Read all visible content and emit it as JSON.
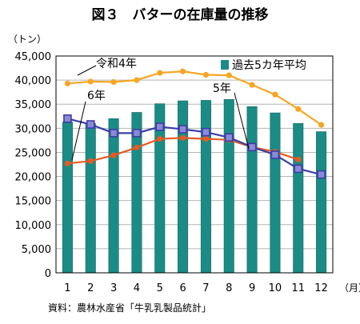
{
  "chart_data": {
    "type": "bar",
    "title": "図３　バターの在庫量の推移",
    "ylabel": "（トン）",
    "xlabel": "（月）",
    "source": "資料：農林水産省「牛乳乳製品統計」",
    "categories": [
      "1",
      "2",
      "3",
      "4",
      "5",
      "6",
      "7",
      "8",
      "9",
      "10",
      "11",
      "12"
    ],
    "ylim": [
      0,
      45000
    ],
    "ytick_values": [
      0,
      5000,
      10000,
      15000,
      20000,
      25000,
      30000,
      35000,
      40000,
      45000
    ],
    "ytick_labels": [
      "0",
      "5,000",
      "10,000",
      "15,000",
      "20,000",
      "25,000",
      "30,000",
      "35,000",
      "40,000",
      "45,000"
    ],
    "grid": true,
    "legend_position": "top-right",
    "series": [
      {
        "name": "過去5カ年平均",
        "kind": "bar",
        "color": "#1a8c85",
        "values": [
          31300,
          31000,
          32000,
          33300,
          35100,
          35700,
          35800,
          36000,
          34500,
          33200,
          31000,
          29300
        ]
      },
      {
        "name": "令和4年",
        "kind": "line",
        "color": "#f5a623",
        "marker": "circle",
        "values": [
          39300,
          39700,
          39600,
          40000,
          41500,
          41800,
          41100,
          41000,
          39000,
          37000,
          34000,
          30700
        ]
      },
      {
        "name": "5年",
        "kind": "line",
        "color": "#e85a24",
        "marker": "circle",
        "values": [
          22700,
          23200,
          24400,
          26000,
          27800,
          28000,
          27800,
          27600,
          26100,
          25100,
          23500,
          null
        ]
      },
      {
        "name": "6年",
        "kind": "line",
        "color": "#3d3da8",
        "marker": "square",
        "values": [
          32000,
          30800,
          29000,
          29000,
          30300,
          29800,
          29200,
          28100,
          26100,
          24500,
          21600,
          20400
        ]
      }
    ]
  }
}
